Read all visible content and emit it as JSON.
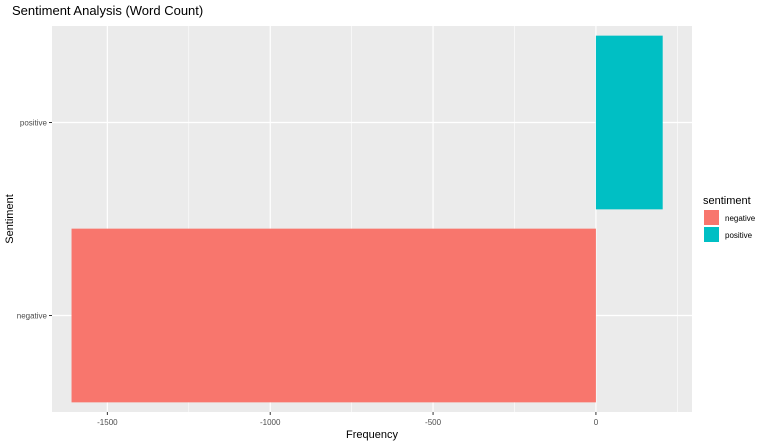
{
  "chart_data": {
    "type": "bar",
    "orientation": "horizontal",
    "title": "Sentiment Analysis (Word Count)",
    "xlabel": "Frequency",
    "ylabel": "Sentiment",
    "categories": [
      "negative",
      "positive"
    ],
    "values": [
      -1610,
      205
    ],
    "colors": [
      "#F8766D",
      "#00BFC4"
    ],
    "xlim": [
      -1670,
      295
    ],
    "x_ticks": [
      -1500,
      -1000,
      -500,
      0
    ],
    "x_tick_labels": [
      "-1500",
      "-1000",
      "-500",
      "0"
    ],
    "grid": true,
    "panel_background": "#EBEBEB",
    "grid_color": "#FFFFFF",
    "legend": {
      "title": "sentiment",
      "position": "right",
      "entries": [
        {
          "label": "negative",
          "color": "#F8766D"
        },
        {
          "label": "positive",
          "color": "#00BFC4"
        }
      ]
    }
  }
}
